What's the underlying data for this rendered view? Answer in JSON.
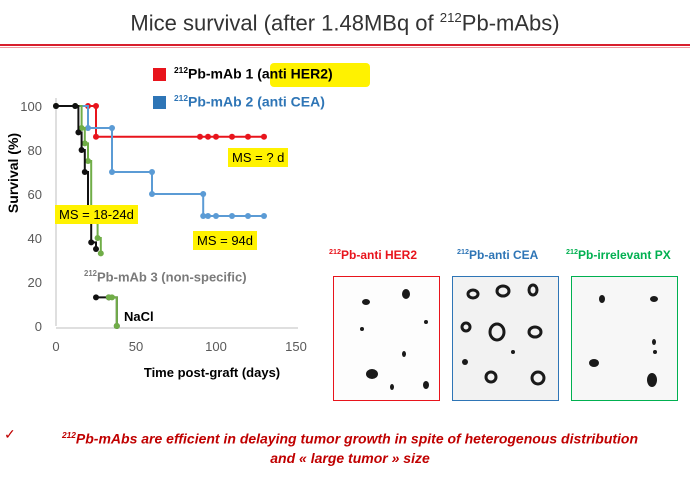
{
  "slide": {
    "title_pre": "Mice survival (after 1.48MBq of ",
    "title_sup": "212",
    "title_post": "Pb-mAbs)"
  },
  "legend": {
    "items": [
      {
        "sup": "212",
        "text": "Pb-mAb 1 (anti HER2)",
        "color": "#e8141c"
      },
      {
        "sup": "212",
        "text": "Pb-mAb 2 (anti CEA)",
        "color": "#2e75b6"
      }
    ]
  },
  "annotations": {
    "ms_her2": "MS =  ? d",
    "ms_irr": "MS = 18-24d",
    "ms_cea": "MS = 94d",
    "mab3_sup": "212",
    "mab3_text": "Pb-mAb 3 (non-specific)",
    "nacl": "NaCl"
  },
  "chart_data": {
    "type": "line",
    "title": "",
    "xlabel": "Time  post-graft (days)",
    "ylabel": "Survival (%)",
    "xlim": [
      0,
      150
    ],
    "ylim": [
      0,
      100
    ],
    "xticks": [
      0,
      50,
      100,
      150
    ],
    "yticks": [
      0,
      20,
      40,
      60,
      80,
      100
    ],
    "grid": false,
    "series": [
      {
        "name": "212Pb-mAb 1 (anti HER2)",
        "color": "#e8141c",
        "x": [
          0,
          20,
          25,
          25,
          90,
          95,
          100,
          110,
          120,
          130
        ],
        "y": [
          100,
          100,
          100,
          86,
          86,
          86,
          86,
          86,
          86,
          86
        ]
      },
      {
        "name": "212Pb-mAb 2 (anti CEA)",
        "color": "#5b9bd5",
        "x": [
          0,
          20,
          35,
          35,
          60,
          60,
          92,
          92,
          95,
          100,
          110,
          120,
          130
        ],
        "y": [
          100,
          90,
          90,
          70,
          70,
          60,
          60,
          50,
          50,
          50,
          50,
          50,
          50
        ]
      },
      {
        "name": "212Pb-mAb 3 (non-specific)",
        "color": "#70ad47",
        "x": [
          0,
          12,
          16,
          18,
          20,
          22,
          26,
          28
        ],
        "y": [
          100,
          100,
          90,
          83,
          75,
          50,
          40,
          33
        ]
      },
      {
        "name": "NaCl",
        "color": "#111111",
        "x": [
          0,
          12,
          14,
          16,
          18,
          20,
          22,
          25
        ],
        "y": [
          100,
          100,
          88,
          80,
          70,
          50,
          38,
          35
        ]
      },
      {
        "name": "NaCl (late)",
        "color": "#111111",
        "x": [
          25,
          33,
          38
        ],
        "y": [
          13,
          13,
          0
        ]
      },
      {
        "name": "",
        "color": "#70ad47",
        "x": [
          33,
          35,
          38
        ],
        "y": [
          13,
          13,
          0
        ]
      }
    ]
  },
  "panels": [
    {
      "sup": "212",
      "title": "Pb-anti HER2",
      "color": "#e8141c"
    },
    {
      "sup": "212",
      "title": "Pb-anti CEA",
      "color": "#2e75b6"
    },
    {
      "sup": "212",
      "title": "Pb-irrelevant  PX",
      "color": "#00b050"
    }
  ],
  "footer": {
    "check": "✓",
    "line1_sup": "212",
    "line1": "Pb-mAbs are efficient in delaying tumor growth in spite of heterogenous distribution",
    "line2": "and « large tumor » size"
  }
}
